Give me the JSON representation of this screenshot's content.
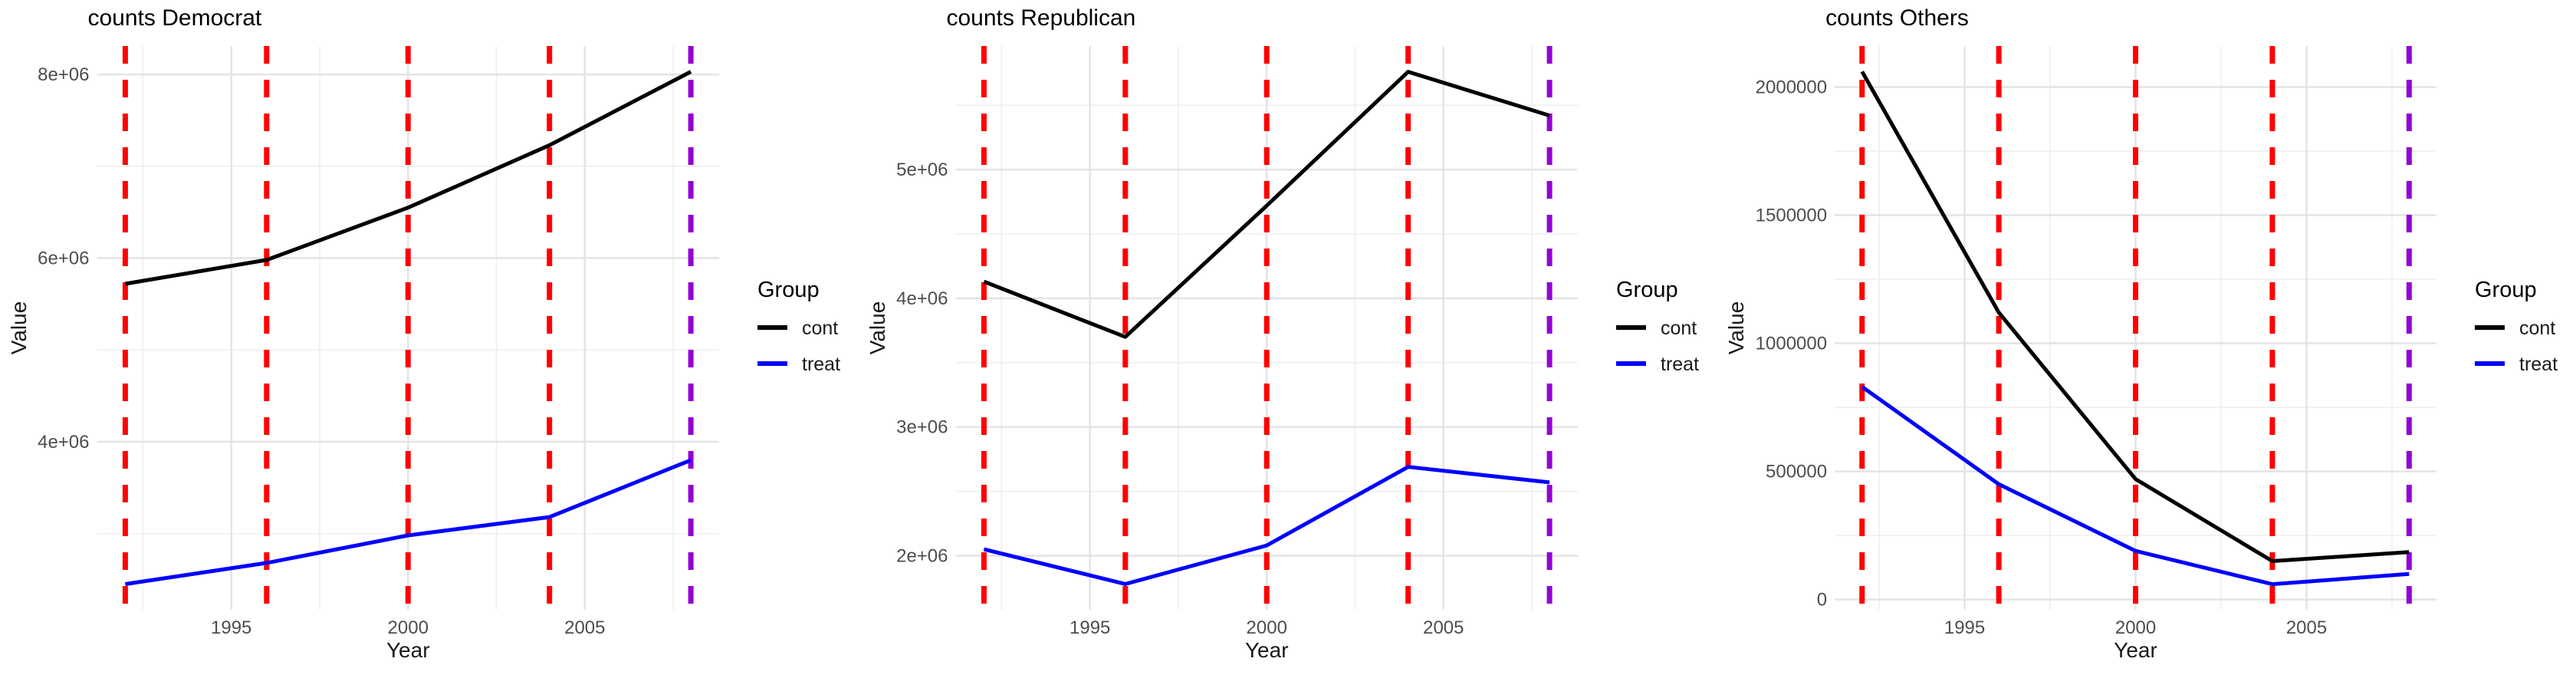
{
  "figure": {
    "background": "#FFFFFF",
    "grid_major_color": "#E4E4E4",
    "grid_minor_color": "#EFEFEF",
    "tick_label_color": "#4D4D4D",
    "event_line_color": "#FF0000",
    "final_line_color": "#9400D3"
  },
  "legend": {
    "title": "Group",
    "entries": [
      {
        "label": "cont",
        "color": "#000000"
      },
      {
        "label": "treat",
        "color": "#0000FF"
      }
    ]
  },
  "chart_data": [
    {
      "type": "line",
      "title": "counts Democrat",
      "xlabel": "Year",
      "ylabel": "Value",
      "x": [
        1992,
        1996,
        2000,
        2004,
        2008
      ],
      "series": [
        {
          "name": "cont",
          "color": "#000000",
          "values": [
            5720000,
            5980000,
            6550000,
            7230000,
            8030000
          ]
        },
        {
          "name": "treat",
          "color": "#0000FF",
          "values": [
            2450000,
            2680000,
            2980000,
            3180000,
            3800000
          ]
        }
      ],
      "event_vlines": {
        "color": "#FF0000",
        "years": [
          1992,
          1996,
          2000,
          2004
        ]
      },
      "final_vline": {
        "color": "#9400D3",
        "year": 2008
      },
      "x_ticks": [
        1995,
        2000,
        2005
      ],
      "x_minor": [
        1992.5,
        1997.5,
        2002.5,
        2007.5
      ],
      "y_ticks": [
        {
          "v": 4000000,
          "label": "4e+06"
        },
        {
          "v": 6000000,
          "label": "6e+06"
        },
        {
          "v": 8000000,
          "label": "8e+06"
        }
      ],
      "y_minor": [
        3000000,
        5000000,
        7000000
      ],
      "xlim": [
        1991.2,
        2008.8
      ],
      "ylim": [
        2170000,
        8310000
      ],
      "grid": true,
      "legend_position": "right"
    },
    {
      "type": "line",
      "title": "counts Republican",
      "xlabel": "Year",
      "ylabel": "Value",
      "x": [
        1992,
        1996,
        2000,
        2004,
        2008
      ],
      "series": [
        {
          "name": "cont",
          "color": "#000000",
          "values": [
            4130000,
            3700000,
            4720000,
            5760000,
            5420000
          ]
        },
        {
          "name": "treat",
          "color": "#0000FF",
          "values": [
            2050000,
            1780000,
            2080000,
            2690000,
            2570000
          ]
        }
      ],
      "event_vlines": {
        "color": "#FF0000",
        "years": [
          1992,
          1996,
          2000,
          2004
        ]
      },
      "final_vline": {
        "color": "#9400D3",
        "year": 2008
      },
      "x_ticks": [
        1995,
        2000,
        2005
      ],
      "x_minor": [
        1992.5,
        1997.5,
        2002.5,
        2007.5
      ],
      "y_ticks": [
        {
          "v": 2000000,
          "label": "2e+06"
        },
        {
          "v": 3000000,
          "label": "3e+06"
        },
        {
          "v": 4000000,
          "label": "4e+06"
        },
        {
          "v": 5000000,
          "label": "5e+06"
        }
      ],
      "y_minor": [
        2500000,
        3500000,
        4500000,
        5500000
      ],
      "xlim": [
        1991.2,
        2008.8
      ],
      "ylim": [
        1580000,
        5960000
      ],
      "grid": true,
      "legend_position": "right"
    },
    {
      "type": "line",
      "title": "counts Others",
      "xlabel": "Year",
      "ylabel": "Value",
      "x": [
        1992,
        1996,
        2000,
        2004,
        2008
      ],
      "series": [
        {
          "name": "cont",
          "color": "#000000",
          "values": [
            2060000,
            1120000,
            470000,
            150000,
            185000
          ]
        },
        {
          "name": "treat",
          "color": "#0000FF",
          "values": [
            830000,
            450000,
            190000,
            60000,
            100000
          ]
        }
      ],
      "event_vlines": {
        "color": "#FF0000",
        "years": [
          1992,
          1996,
          2000,
          2004
        ]
      },
      "final_vline": {
        "color": "#9400D3",
        "year": 2008
      },
      "x_ticks": [
        1995,
        2000,
        2005
      ],
      "x_minor": [
        1992.5,
        1997.5,
        2002.5,
        2007.5
      ],
      "y_ticks": [
        {
          "v": 0,
          "label": "0"
        },
        {
          "v": 500000,
          "label": "500000"
        },
        {
          "v": 1000000,
          "label": "1000000"
        },
        {
          "v": 1500000,
          "label": "1500000"
        },
        {
          "v": 2000000,
          "label": "2000000"
        }
      ],
      "y_minor": [
        250000,
        750000,
        1250000,
        1750000
      ],
      "xlim": [
        1991.2,
        2008.8
      ],
      "ylim": [
        -40000,
        2160000
      ],
      "grid": true,
      "legend_position": "right"
    }
  ]
}
